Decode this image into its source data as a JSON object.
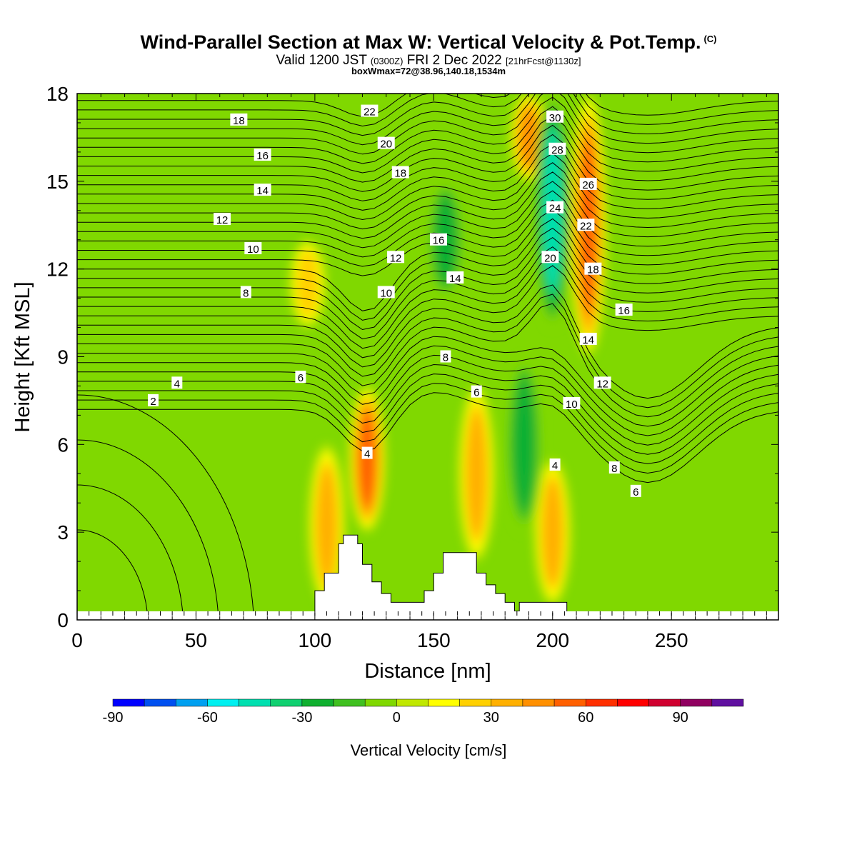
{
  "header": {
    "title": "Wind-Parallel Section at Max W: Vertical Velocity & Pot.Temp.",
    "copyright": "(C)",
    "subtitle_main": "Valid 1200 JST",
    "subtitle_utc": "(0300Z)",
    "subtitle_date": "FRI 2 Dec 2022",
    "subtitle_fcst": "[21hrFcst@1130z]",
    "subtitle2": "boxWmax=72@38.96,140.18,1534m"
  },
  "chart_data": {
    "type": "heatmap",
    "xlabel": "Distance [nm]",
    "ylabel": "Height [Kft MSL]",
    "xlim": [
      0,
      295
    ],
    "ylim": [
      0,
      18
    ],
    "xticks": [
      "0",
      "50",
      "100",
      "150",
      "200",
      "250"
    ],
    "yticks": [
      "0",
      "3",
      "6",
      "9",
      "12",
      "15",
      "18"
    ],
    "colorbar": {
      "title": "Vertical Velocity [cm/s]",
      "range": [
        -90,
        110
      ],
      "step": 10,
      "tick_labels": [
        "-90",
        "-60",
        "-30",
        "0",
        "30",
        "60",
        "90"
      ],
      "colors": [
        "#0000ff",
        "#0050f0",
        "#00a0f0",
        "#00f0f0",
        "#00e0b0",
        "#10d070",
        "#10b030",
        "#40c020",
        "#80d800",
        "#c0e800",
        "#ffff00",
        "#ffd000",
        "#ffb000",
        "#ff9000",
        "#ff6000",
        "#ff3000",
        "#ff0000",
        "#d00030",
        "#900060",
        "#6010a0"
      ]
    },
    "vertical_velocity_features": [
      {
        "kind": "updraft",
        "x": 122,
        "y_bottom": 3,
        "y_top": 8,
        "peak": 65
      },
      {
        "kind": "updraft",
        "x": 105,
        "y_bottom": 0.5,
        "y_top": 6,
        "peak": 40
      },
      {
        "kind": "updraft",
        "x": 97,
        "y_bottom": 10,
        "y_top": 13,
        "peak": 30
      },
      {
        "kind": "updraft",
        "x": 168,
        "y_bottom": 2,
        "y_top": 8,
        "peak": 40
      },
      {
        "kind": "updraft",
        "x": 200,
        "y_bottom": 0.5,
        "y_top": 5.5,
        "peak": 40
      },
      {
        "kind": "updraft",
        "x": 215,
        "y_bottom": 9,
        "y_top": 18,
        "peak": 65
      },
      {
        "kind": "updraft",
        "x": 190,
        "y_bottom": 15,
        "y_top": 18,
        "peak": 50
      },
      {
        "kind": "downdraft",
        "x": 200,
        "y_bottom": 10,
        "y_top": 18,
        "peak": -50
      },
      {
        "kind": "downdraft",
        "x": 155,
        "y_bottom": 11,
        "y_top": 15,
        "peak": -30
      },
      {
        "kind": "downdraft",
        "x": 188,
        "y_bottom": 3,
        "y_top": 9,
        "peak": -30
      }
    ],
    "terrain": [
      [
        100,
        0
      ],
      [
        100,
        1
      ],
      [
        104,
        1
      ],
      [
        104,
        1.6
      ],
      [
        110,
        1.6
      ],
      [
        110,
        2.6
      ],
      [
        112,
        2.6
      ],
      [
        112,
        2.9
      ],
      [
        118,
        2.9
      ],
      [
        118,
        2.6
      ],
      [
        120,
        2.6
      ],
      [
        120,
        1.9
      ],
      [
        124,
        1.9
      ],
      [
        124,
        1.3
      ],
      [
        128,
        1.3
      ],
      [
        128,
        0.9
      ],
      [
        132,
        0.9
      ],
      [
        132,
        0.6
      ],
      [
        146,
        0.6
      ],
      [
        146,
        1
      ],
      [
        150,
        1
      ],
      [
        150,
        1.6
      ],
      [
        154,
        1.6
      ],
      [
        154,
        2.3
      ],
      [
        168,
        2.3
      ],
      [
        168,
        1.6
      ],
      [
        172,
        1.6
      ],
      [
        172,
        1.2
      ],
      [
        176,
        1.2
      ],
      [
        176,
        0.9
      ],
      [
        180,
        0.9
      ],
      [
        180,
        0.6
      ],
      [
        184,
        0.6
      ],
      [
        184,
        0.3
      ],
      [
        186,
        0.3
      ],
      [
        186,
        0.6
      ],
      [
        206,
        0.6
      ],
      [
        206,
        0
      ]
    ],
    "pot_temp_labels": [
      {
        "text": "2",
        "x": 32,
        "y": 7.5
      },
      {
        "text": "4",
        "x": 42,
        "y": 8.1
      },
      {
        "text": "8",
        "x": 71,
        "y": 11.2
      },
      {
        "text": "10",
        "x": 74,
        "y": 12.7
      },
      {
        "text": "12",
        "x": 61,
        "y": 13.7
      },
      {
        "text": "14",
        "x": 78,
        "y": 14.7
      },
      {
        "text": "16",
        "x": 78,
        "y": 15.9
      },
      {
        "text": "18",
        "x": 68,
        "y": 17.1
      },
      {
        "text": "6",
        "x": 94,
        "y": 8.3
      },
      {
        "text": "4",
        "x": 122,
        "y": 5.7
      },
      {
        "text": "10",
        "x": 130,
        "y": 11.2
      },
      {
        "text": "12",
        "x": 134,
        "y": 12.4
      },
      {
        "text": "18",
        "x": 136,
        "y": 15.3
      },
      {
        "text": "20",
        "x": 130,
        "y": 16.3
      },
      {
        "text": "22",
        "x": 123,
        "y": 17.4
      },
      {
        "text": "16",
        "x": 152,
        "y": 13.0
      },
      {
        "text": "14",
        "x": 159,
        "y": 11.7
      },
      {
        "text": "8",
        "x": 155,
        "y": 9.0
      },
      {
        "text": "6",
        "x": 168,
        "y": 7.8
      },
      {
        "text": "4",
        "x": 201,
        "y": 5.3
      },
      {
        "text": "10",
        "x": 208,
        "y": 7.4
      },
      {
        "text": "12",
        "x": 221,
        "y": 8.1
      },
      {
        "text": "14",
        "x": 215,
        "y": 9.6
      },
      {
        "text": "16",
        "x": 230,
        "y": 10.6
      },
      {
        "text": "18",
        "x": 217,
        "y": 12.0
      },
      {
        "text": "20",
        "x": 199,
        "y": 12.4
      },
      {
        "text": "22",
        "x": 214,
        "y": 13.5
      },
      {
        "text": "24",
        "x": 201,
        "y": 14.1
      },
      {
        "text": "26",
        "x": 215,
        "y": 14.9
      },
      {
        "text": "28",
        "x": 202,
        "y": 16.1
      },
      {
        "text": "30",
        "x": 201,
        "y": 17.2
      },
      {
        "text": "8",
        "x": 226,
        "y": 5.2
      },
      {
        "text": "6",
        "x": 235,
        "y": 4.4
      }
    ]
  }
}
